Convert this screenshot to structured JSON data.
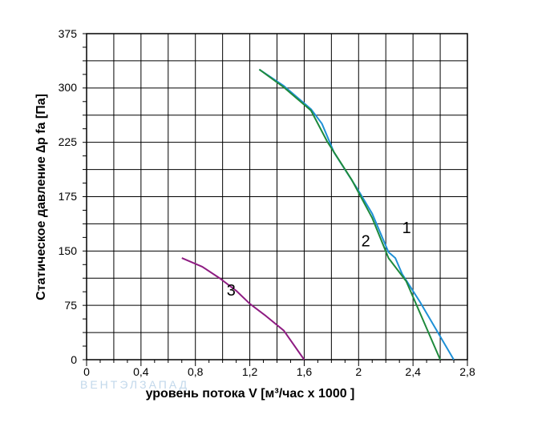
{
  "chart_data": {
    "type": "line",
    "xlabel": "уровень потока  V [м³/час x 1000 ]",
    "ylabel": "Статическое давление  ∆p fa [Па]",
    "xlim": [
      0,
      2.8
    ],
    "ylim": [
      0,
      375
    ],
    "x_ticks": [
      "0",
      "0,4",
      "0,8",
      "1,2",
      "1,6",
      "2",
      "2,4",
      "2,8"
    ],
    "x_tick_values": [
      0,
      0.4,
      0.8,
      1.2,
      1.6,
      2.0,
      2.4,
      2.8
    ],
    "y_ticks": [
      "0",
      "75",
      "150",
      "175",
      "225",
      "300",
      "375"
    ],
    "y_tick_values": [
      0,
      75,
      150,
      175,
      225,
      300,
      375
    ],
    "grid": true,
    "series": [
      {
        "name": "1",
        "color": "#1e90d6",
        "points": [
          [
            1.27,
            325
          ],
          [
            1.45,
            302
          ],
          [
            1.65,
            270
          ],
          [
            1.73,
            250
          ],
          [
            1.82,
            215
          ],
          [
            2.0,
            180
          ],
          [
            2.1,
            167
          ],
          [
            2.22,
            148
          ],
          [
            2.27,
            140
          ],
          [
            2.32,
            118
          ],
          [
            2.45,
            80
          ],
          [
            2.55,
            48
          ],
          [
            2.7,
            0
          ]
        ]
      },
      {
        "name": "2",
        "color": "#1e8a3c",
        "points": [
          [
            1.27,
            325
          ],
          [
            1.45,
            300
          ],
          [
            1.65,
            268
          ],
          [
            1.77,
            225
          ],
          [
            1.95,
            190
          ],
          [
            2.1,
            165
          ],
          [
            2.22,
            140
          ],
          [
            2.35,
            108
          ],
          [
            2.45,
            65
          ],
          [
            2.6,
            0
          ]
        ]
      },
      {
        "name": "3",
        "color": "#8e1c82",
        "points": [
          [
            0.7,
            140
          ],
          [
            0.85,
            128
          ],
          [
            0.98,
            112
          ],
          [
            1.1,
            95
          ],
          [
            1.2,
            77
          ],
          [
            1.32,
            60
          ],
          [
            1.45,
            40
          ],
          [
            1.6,
            0
          ]
        ]
      }
    ]
  },
  "watermark": "ВЕНТЭЛЗАПАД"
}
